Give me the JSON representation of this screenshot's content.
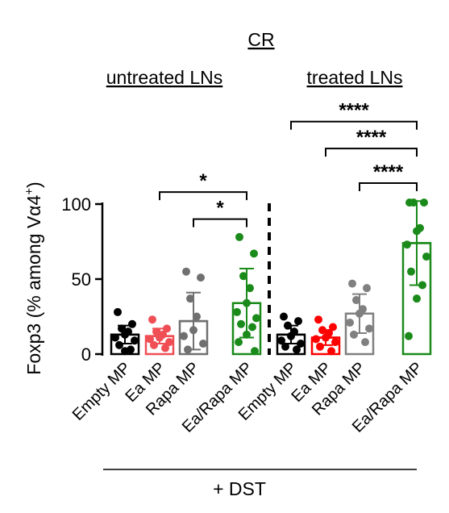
{
  "chart_data": {
    "type": "bar",
    "title": "CR",
    "ylabel": "Foxp3 (% among Vα4",
    "ylabel_sup": "+",
    "ylabel_close": ")",
    "ylim": [
      0,
      100
    ],
    "yticks": [
      0,
      50,
      100
    ],
    "groups": [
      {
        "label": "untreated LNs",
        "categories": [
          0,
          1,
          2,
          3
        ]
      },
      {
        "label": "treated LNs",
        "categories": [
          4,
          5,
          6,
          7
        ]
      }
    ],
    "footer": "+ DST",
    "categories": [
      "Empty MP",
      "Ea MP",
      "Rapa MP",
      "Ea/Rapa MP",
      "Empty MP",
      "Ea MP",
      "Rapa MP",
      "Ea/Rapa MP"
    ],
    "series": [
      {
        "values": [
          13,
          12,
          22,
          34,
          13,
          11,
          27,
          74
        ],
        "sd": [
          6,
          5,
          19,
          23,
          6,
          5,
          13,
          28
        ],
        "colors": [
          "#000000",
          "#f04e55",
          "#707070",
          "#1a8a1a",
          "#000000",
          "#ff0000",
          "#808080",
          "#1a8a1a"
        ],
        "points": [
          [
            28,
            20,
            17,
            15,
            13,
            11,
            9,
            6,
            3,
            2
          ],
          [
            23,
            17,
            15,
            13,
            11,
            10,
            8,
            6,
            4
          ],
          [
            55,
            51,
            37,
            25,
            16,
            12,
            7,
            3
          ],
          [
            78,
            67,
            52,
            44,
            34,
            28,
            24,
            20,
            18,
            13,
            8,
            2
          ],
          [
            25,
            22,
            19,
            15,
            12,
            9,
            7,
            5,
            3
          ],
          [
            23,
            18,
            16,
            14,
            11,
            10,
            8,
            5,
            2
          ],
          [
            47,
            44,
            36,
            30,
            27,
            21,
            17,
            13,
            8
          ],
          [
            101,
            101,
            101,
            84,
            82,
            73,
            65,
            55,
            46,
            37,
            12
          ]
        ]
      }
    ],
    "significance": [
      {
        "from": 1,
        "to": 3,
        "y": 108,
        "label": "*"
      },
      {
        "from": 2,
        "to": 3,
        "y": 90,
        "label": "*"
      },
      {
        "from": 4,
        "to": 7,
        "y": 155,
        "label": "****"
      },
      {
        "from": 5,
        "to": 7,
        "y": 137,
        "label": "****"
      },
      {
        "from": 6,
        "to": 7,
        "y": 114,
        "label": "****"
      }
    ]
  }
}
